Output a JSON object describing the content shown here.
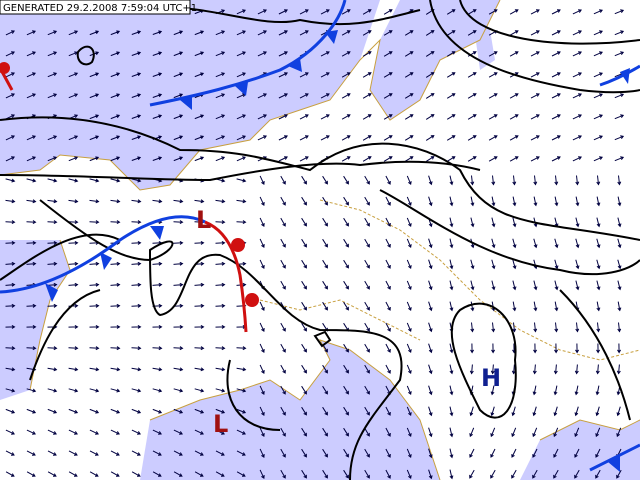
{
  "header": {
    "generated": "GENERATED 29.2.2008 7:59:04 UTC+1"
  },
  "pressure_labels": [
    {
      "label": "L"
    },
    {
      "label": "L"
    },
    {
      "label": "H"
    }
  ]
}
